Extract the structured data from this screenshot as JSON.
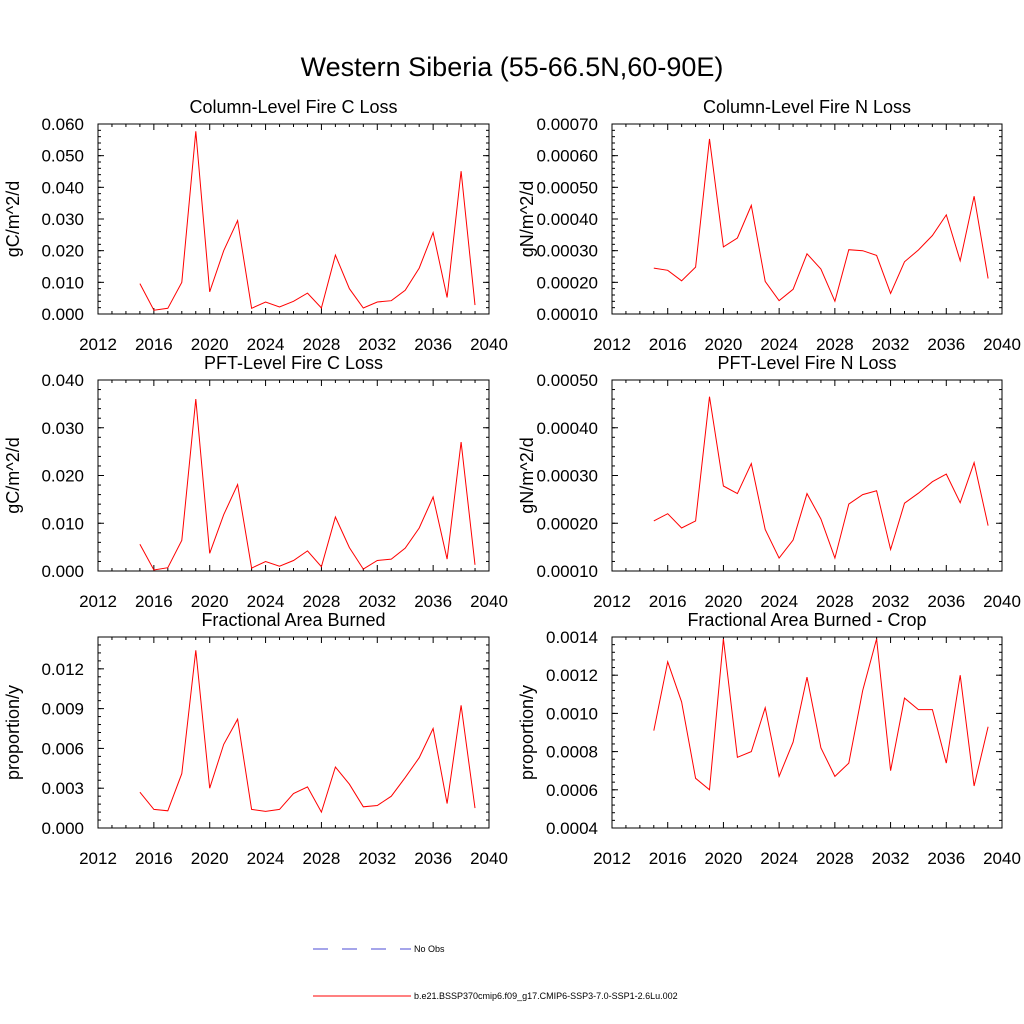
{
  "title": "Western Siberia (55-66.5N,60-90E)",
  "legend": {
    "items": [
      {
        "label": "No Obs",
        "color": "#4b4bd6",
        "style": "dashed"
      },
      {
        "label": "b.e21.BSSP370cmip6.f09_g17.CMIP6-SSP3-7.0-SSP1-2.6Lu.002",
        "color": "#ff0000",
        "style": "solid"
      }
    ]
  },
  "chart_data": [
    {
      "type": "line",
      "title": "Column-Level Fire C Loss",
      "xlabel": "",
      "ylabel": "gC/m^2/d",
      "xlim": [
        2012,
        2040
      ],
      "ylim": [
        0,
        0.06
      ],
      "xticks": [
        2012,
        2016,
        2020,
        2024,
        2028,
        2032,
        2036,
        2040
      ],
      "yticks": [
        "0.000",
        "0.010",
        "0.020",
        "0.030",
        "0.040",
        "0.050",
        "0.060"
      ],
      "x": [
        2015,
        2016,
        2017,
        2018,
        2019,
        2020,
        2021,
        2022,
        2023,
        2024,
        2025,
        2026,
        2027,
        2028,
        2029,
        2030,
        2031,
        2032,
        2033,
        2034,
        2035,
        2036,
        2037,
        2038,
        2039
      ],
      "series": [
        {
          "color": "#ff0000",
          "values": [
            0.0096,
            0.0012,
            0.0018,
            0.01,
            0.0577,
            0.007,
            0.02,
            0.0295,
            0.0018,
            0.0038,
            0.0022,
            0.004,
            0.0066,
            0.0019,
            0.0186,
            0.008,
            0.0019,
            0.0038,
            0.0042,
            0.0075,
            0.0145,
            0.0257,
            0.0052,
            0.0451,
            0.0028
          ]
        }
      ]
    },
    {
      "type": "line",
      "title": "Column-Level Fire N Loss",
      "xlabel": "",
      "ylabel": "gN/m^2/d",
      "xlim": [
        2012,
        2040
      ],
      "ylim": [
        0.0001,
        0.0007
      ],
      "xticks": [
        2012,
        2016,
        2020,
        2024,
        2028,
        2032,
        2036,
        2040
      ],
      "yticks": [
        "0.00010",
        "0.00020",
        "0.00030",
        "0.00040",
        "0.00050",
        "0.00060",
        "0.00070"
      ],
      "x": [
        2015,
        2016,
        2017,
        2018,
        2019,
        2020,
        2021,
        2022,
        2023,
        2024,
        2025,
        2026,
        2027,
        2028,
        2029,
        2030,
        2031,
        2032,
        2033,
        2034,
        2035,
        2036,
        2037,
        2038,
        2039
      ],
      "series": [
        {
          "color": "#ff0000",
          "values": [
            0.000245,
            0.000238,
            0.000205,
            0.000248,
            0.000653,
            0.000312,
            0.00034,
            0.000443,
            0.000203,
            0.000142,
            0.000178,
            0.00029,
            0.000242,
            0.00014,
            0.000303,
            0.0003,
            0.000285,
            0.000165,
            0.000265,
            0.000302,
            0.000348,
            0.000413,
            0.000268,
            0.000472,
            0.000212
          ]
        }
      ]
    },
    {
      "type": "line",
      "title": "PFT-Level Fire C Loss",
      "xlabel": "",
      "ylabel": "gC/m^2/d",
      "xlim": [
        2012,
        2040
      ],
      "ylim": [
        0,
        0.04
      ],
      "xticks": [
        2012,
        2016,
        2020,
        2024,
        2028,
        2032,
        2036,
        2040
      ],
      "yticks": [
        "0.000",
        "0.010",
        "0.020",
        "0.030",
        "0.040"
      ],
      "x": [
        2015,
        2016,
        2017,
        2018,
        2019,
        2020,
        2021,
        2022,
        2023,
        2024,
        2025,
        2026,
        2027,
        2028,
        2029,
        2030,
        2031,
        2032,
        2033,
        2034,
        2035,
        2036,
        2037,
        2038,
        2039
      ],
      "series": [
        {
          "color": "#ff0000",
          "values": [
            0.0056,
            0.0002,
            0.0007,
            0.0064,
            0.036,
            0.0037,
            0.0118,
            0.0181,
            0.0006,
            0.002,
            0.001,
            0.0022,
            0.0042,
            0.0009,
            0.0113,
            0.0049,
            0.0004,
            0.0022,
            0.0025,
            0.0048,
            0.009,
            0.0155,
            0.0025,
            0.027,
            0.0013
          ]
        }
      ]
    },
    {
      "type": "line",
      "title": "PFT-Level Fire N Loss",
      "xlabel": "",
      "ylabel": "gN/m^2/d",
      "xlim": [
        2012,
        2040
      ],
      "ylim": [
        0.0001,
        0.0005
      ],
      "xticks": [
        2012,
        2016,
        2020,
        2024,
        2028,
        2032,
        2036,
        2040
      ],
      "yticks": [
        "0.00010",
        "0.00020",
        "0.00030",
        "0.00040",
        "0.00050"
      ],
      "x": [
        2015,
        2016,
        2017,
        2018,
        2019,
        2020,
        2021,
        2022,
        2023,
        2024,
        2025,
        2026,
        2027,
        2028,
        2029,
        2030,
        2031,
        2032,
        2033,
        2034,
        2035,
        2036,
        2037,
        2038,
        2039
      ],
      "series": [
        {
          "color": "#ff0000",
          "values": [
            0.000205,
            0.00022,
            0.00019,
            0.000205,
            0.000465,
            0.000278,
            0.000262,
            0.000325,
            0.000187,
            0.000127,
            0.000165,
            0.000262,
            0.000209,
            0.000127,
            0.00024,
            0.00026,
            0.000268,
            0.000145,
            0.000242,
            0.000263,
            0.000287,
            0.000303,
            0.000243,
            0.000327,
            0.000195
          ]
        }
      ]
    },
    {
      "type": "line",
      "title": "Fractional Area Burned",
      "xlabel": "",
      "ylabel": "proportion/y",
      "xlim": [
        2012,
        2040
      ],
      "ylim": [
        0,
        0.0144
      ],
      "xticks": [
        2012,
        2016,
        2020,
        2024,
        2028,
        2032,
        2036,
        2040
      ],
      "yticks": [
        "0.000",
        "0.003",
        "0.006",
        "0.009",
        "0.012"
      ],
      "x": [
        2015,
        2016,
        2017,
        2018,
        2019,
        2020,
        2021,
        2022,
        2023,
        2024,
        2025,
        2026,
        2027,
        2028,
        2029,
        2030,
        2031,
        2032,
        2033,
        2034,
        2035,
        2036,
        2037,
        2038,
        2039
      ],
      "series": [
        {
          "color": "#ff0000",
          "values": [
            0.0027,
            0.0014,
            0.0013,
            0.0041,
            0.0134,
            0.003,
            0.0063,
            0.0082,
            0.0014,
            0.00125,
            0.0014,
            0.0026,
            0.0031,
            0.0012,
            0.0046,
            0.0033,
            0.0016,
            0.0017,
            0.0024,
            0.0038,
            0.0053,
            0.0075,
            0.00185,
            0.00925,
            0.0015
          ]
        }
      ]
    },
    {
      "type": "line",
      "title": "Fractional Area Burned - Crop",
      "xlabel": "",
      "ylabel": "proportion/y",
      "xlim": [
        2012,
        2040
      ],
      "ylim": [
        0.0004,
        0.0014
      ],
      "xticks": [
        2012,
        2016,
        2020,
        2024,
        2028,
        2032,
        2036,
        2040
      ],
      "yticks": [
        "0.0004",
        "0.0006",
        "0.0008",
        "0.0010",
        "0.0012",
        "0.0014"
      ],
      "x": [
        2015,
        2016,
        2017,
        2018,
        2019,
        2020,
        2021,
        2022,
        2023,
        2024,
        2025,
        2026,
        2027,
        2028,
        2029,
        2030,
        2031,
        2032,
        2033,
        2034,
        2035,
        2036,
        2037,
        2038,
        2039
      ],
      "series": [
        {
          "color": "#ff0000",
          "values": [
            0.00091,
            0.00127,
            0.00106,
            0.00066,
            0.0006,
            0.00139,
            0.00077,
            0.0008,
            0.00103,
            0.00067,
            0.00085,
            0.00119,
            0.00082,
            0.00067,
            0.00074,
            0.00112,
            0.00139,
            0.0007,
            0.00108,
            0.00102,
            0.00102,
            0.00074,
            0.0012,
            0.00062,
            0.00093
          ]
        }
      ]
    }
  ]
}
